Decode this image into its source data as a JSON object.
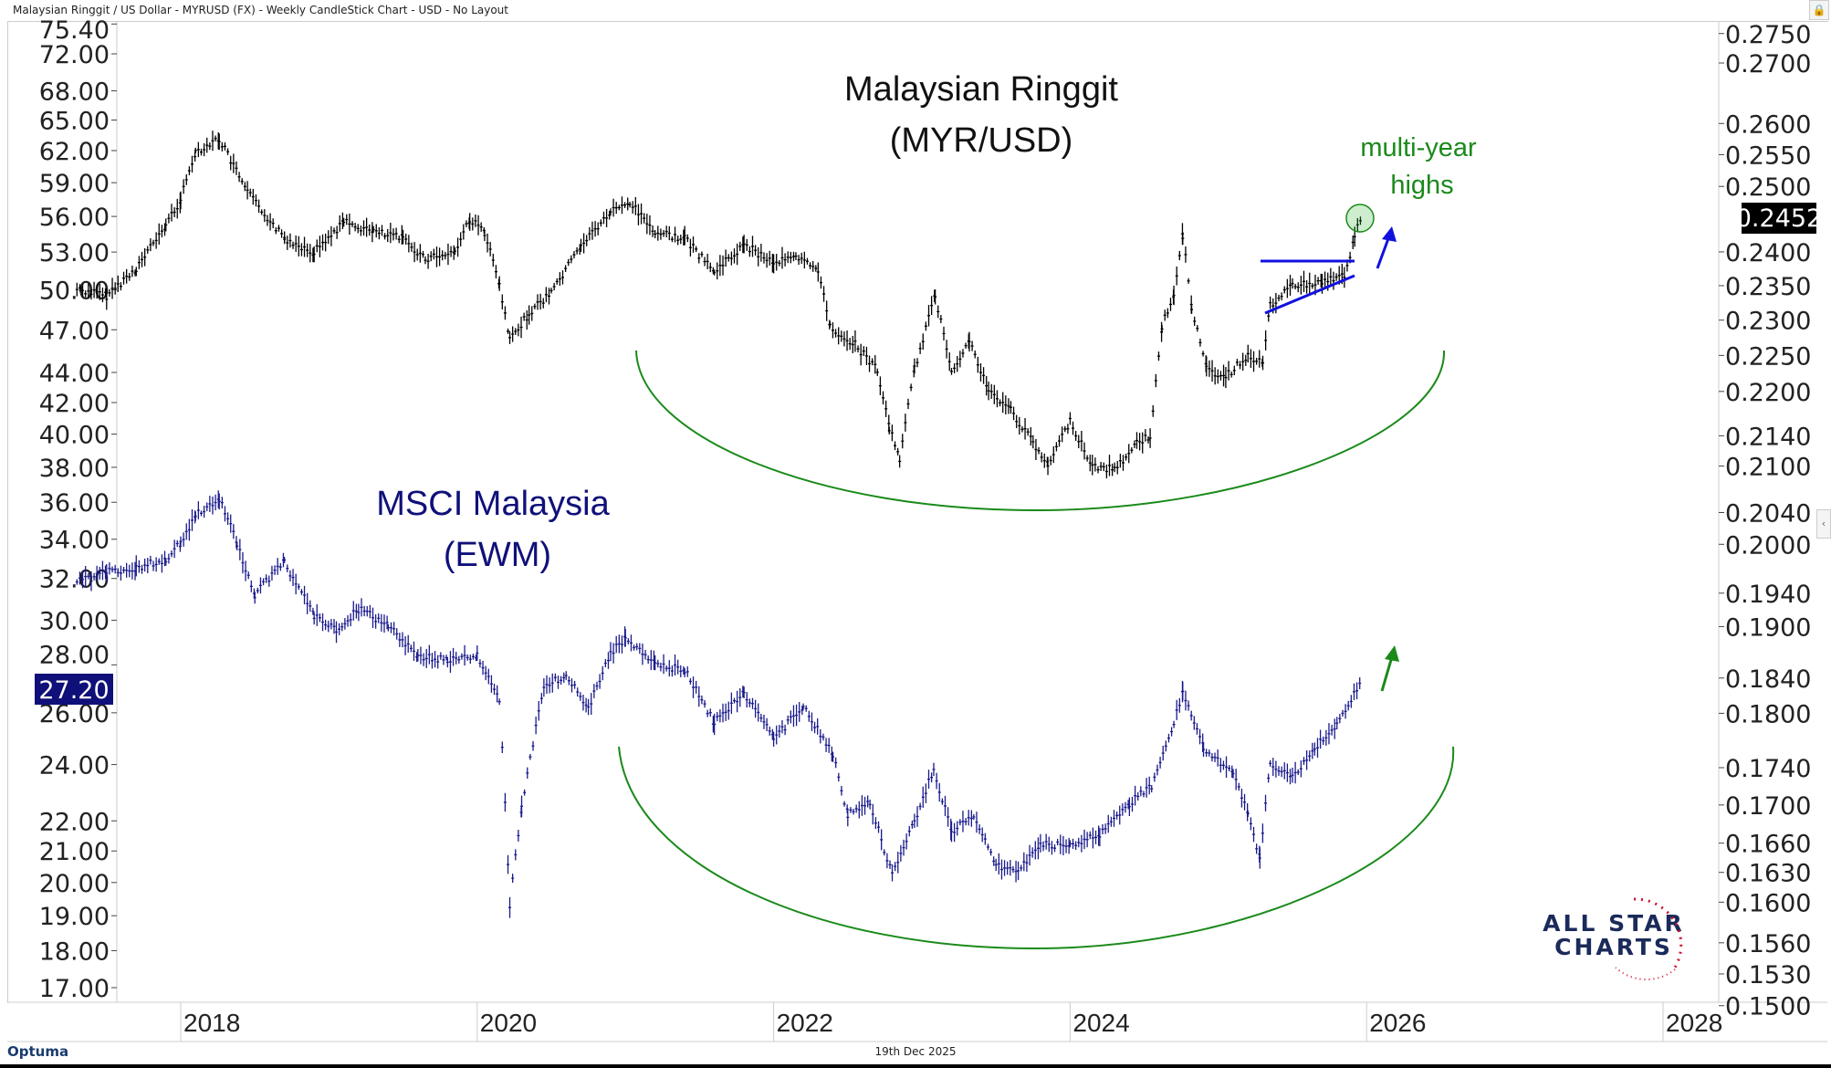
{
  "header": {
    "title": "Malaysian Ringgit / US Dollar - MYRUSD (FX) - Weekly CandleStick Chart - USD - No Layout"
  },
  "footer": {
    "date": "19th Dec 2025",
    "brand": "Optuma"
  },
  "icons": {
    "lock": "lock-icon",
    "collapse": "chevron-left-icon"
  },
  "chart_data": {
    "type": "line",
    "title": "Malaysian Ringgit (MYR/USD) vs MSCI Malaysia (EWM)",
    "x_ticks": [
      "2018",
      "2020",
      "2022",
      "2024",
      "2026",
      "2028"
    ],
    "x_tick_values": [
      2018,
      2020,
      2022,
      2024,
      2026,
      2028
    ],
    "left_axis": {
      "scale": "log",
      "ticks": [
        "75.40",
        "72.00",
        "68.00",
        "65.00",
        "62.00",
        "59.00",
        "56.00",
        "53.00",
        "50.00",
        "47.00",
        "44.00",
        "42.00",
        "40.00",
        "38.00",
        "36.00",
        "34.00",
        "32.00",
        "30.00",
        "28.00",
        "26.00",
        "24.00",
        "22.00",
        "21.00",
        "20.00",
        "19.00",
        "18.00",
        "17.00"
      ],
      "last_value_label": "27.20"
    },
    "right_axis": {
      "scale": "log",
      "ticks": [
        "0.2750",
        "0.2700",
        "0.2600",
        "0.2550",
        "0.2500",
        "0.2400",
        "0.2350",
        "0.2300",
        "0.2250",
        "0.2200",
        "0.2140",
        "0.2100",
        "0.2040",
        "0.2000",
        "0.1940",
        "0.1900",
        "0.1840",
        "0.1800",
        "0.1740",
        "0.1700",
        "0.1660",
        "0.1630",
        "0.1600",
        "0.1560",
        "0.1530",
        "0.1500"
      ],
      "last_value_label": "0.2452"
    },
    "series": [
      {
        "name": "MYR/USD",
        "axis": "right",
        "color": "#000000",
        "points": [
          [
            2017.3,
            0.2345
          ],
          [
            2017.5,
            0.2335
          ],
          [
            2017.7,
            0.2375
          ],
          [
            2017.9,
            0.244
          ],
          [
            2018.0,
            0.248
          ],
          [
            2018.1,
            0.2555
          ],
          [
            2018.26,
            0.2575
          ],
          [
            2018.45,
            0.249
          ],
          [
            2018.7,
            0.242
          ],
          [
            2018.9,
            0.24
          ],
          [
            2019.1,
            0.2445
          ],
          [
            2019.3,
            0.243
          ],
          [
            2019.5,
            0.242
          ],
          [
            2019.65,
            0.239
          ],
          [
            2019.85,
            0.24
          ],
          [
            2019.95,
            0.245
          ],
          [
            2020.05,
            0.243
          ],
          [
            2020.15,
            0.235
          ],
          [
            2020.22,
            0.227
          ],
          [
            2020.35,
            0.231
          ],
          [
            2020.5,
            0.234
          ],
          [
            2020.7,
            0.241
          ],
          [
            2020.9,
            0.246
          ],
          [
            2021.03,
            0.2475
          ],
          [
            2021.2,
            0.243
          ],
          [
            2021.4,
            0.242
          ],
          [
            2021.6,
            0.237
          ],
          [
            2021.8,
            0.241
          ],
          [
            2022.0,
            0.2385
          ],
          [
            2022.15,
            0.239
          ],
          [
            2022.3,
            0.2375
          ],
          [
            2022.38,
            0.229
          ],
          [
            2022.55,
            0.2265
          ],
          [
            2022.7,
            0.223
          ],
          [
            2022.78,
            0.215
          ],
          [
            2022.85,
            0.211
          ],
          [
            2022.95,
            0.223
          ],
          [
            2023.09,
            0.2335
          ],
          [
            2023.2,
            0.223
          ],
          [
            2023.32,
            0.227
          ],
          [
            2023.45,
            0.22
          ],
          [
            2023.6,
            0.2175
          ],
          [
            2023.75,
            0.213
          ],
          [
            2023.85,
            0.21
          ],
          [
            2024.0,
            0.216
          ],
          [
            2024.15,
            0.21
          ],
          [
            2024.3,
            0.2095
          ],
          [
            2024.45,
            0.213
          ],
          [
            2024.54,
            0.214
          ],
          [
            2024.62,
            0.229
          ],
          [
            2024.7,
            0.234
          ],
          [
            2024.76,
            0.2425
          ],
          [
            2024.82,
            0.232
          ],
          [
            2024.92,
            0.223
          ],
          [
            2025.05,
            0.222
          ],
          [
            2025.2,
            0.225
          ],
          [
            2025.3,
            0.224
          ],
          [
            2025.35,
            0.232
          ],
          [
            2025.5,
            0.235
          ],
          [
            2025.7,
            0.2355
          ],
          [
            2025.85,
            0.2365
          ],
          [
            2025.92,
            0.242
          ],
          [
            2025.96,
            0.2452
          ]
        ]
      },
      {
        "name": "EWM",
        "axis": "left",
        "color": "#1a1a8c",
        "points": [
          [
            2017.3,
            31.8
          ],
          [
            2017.5,
            32.3
          ],
          [
            2017.7,
            32.5
          ],
          [
            2017.9,
            33.0
          ],
          [
            2018.0,
            33.8
          ],
          [
            2018.1,
            35.3
          ],
          [
            2018.26,
            36.2
          ],
          [
            2018.38,
            33.8
          ],
          [
            2018.5,
            31.2
          ],
          [
            2018.7,
            32.8
          ],
          [
            2018.9,
            30.2
          ],
          [
            2019.05,
            29.5
          ],
          [
            2019.2,
            30.5
          ],
          [
            2019.4,
            29.8
          ],
          [
            2019.6,
            28.4
          ],
          [
            2019.8,
            28.2
          ],
          [
            2020.0,
            28.4
          ],
          [
            2020.15,
            26.5
          ],
          [
            2020.22,
            19.3
          ],
          [
            2020.3,
            22.5
          ],
          [
            2020.45,
            27.0
          ],
          [
            2020.6,
            27.6
          ],
          [
            2020.75,
            26.2
          ],
          [
            2020.9,
            28.5
          ],
          [
            2021.0,
            29.2
          ],
          [
            2021.2,
            28.0
          ],
          [
            2021.4,
            27.8
          ],
          [
            2021.6,
            25.6
          ],
          [
            2021.8,
            26.8
          ],
          [
            2022.0,
            25.0
          ],
          [
            2022.2,
            26.2
          ],
          [
            2022.4,
            24.4
          ],
          [
            2022.5,
            22.2
          ],
          [
            2022.65,
            22.6
          ],
          [
            2022.8,
            20.2
          ],
          [
            2022.95,
            22.0
          ],
          [
            2023.08,
            23.8
          ],
          [
            2023.2,
            21.6
          ],
          [
            2023.35,
            22.2
          ],
          [
            2023.5,
            20.5
          ],
          [
            2023.65,
            20.4
          ],
          [
            2023.8,
            21.2
          ],
          [
            2024.0,
            21.2
          ],
          [
            2024.2,
            21.5
          ],
          [
            2024.4,
            22.6
          ],
          [
            2024.55,
            23.2
          ],
          [
            2024.7,
            25.6
          ],
          [
            2024.76,
            26.8
          ],
          [
            2024.9,
            24.6
          ],
          [
            2025.1,
            23.6
          ],
          [
            2025.2,
            22.2
          ],
          [
            2025.28,
            20.8
          ],
          [
            2025.35,
            24.0
          ],
          [
            2025.5,
            23.5
          ],
          [
            2025.65,
            24.6
          ],
          [
            2025.8,
            25.6
          ],
          [
            2025.96,
            27.2
          ]
        ]
      }
    ],
    "annotations": {
      "title_top_line1": "Malaysian Ringgit",
      "title_top_line2": "(MYR/USD)",
      "title_bottom_line1": "MSCI Malaysia",
      "title_bottom_line2": "(EWM)",
      "note_line1": "multi-year",
      "note_line2": "highs"
    },
    "colors": {
      "green": "#1a8a1a",
      "blue": "#1010e0",
      "navy": "#10107a",
      "red": "#d01030"
    },
    "watermark": "ALL STAR CHARTS"
  }
}
